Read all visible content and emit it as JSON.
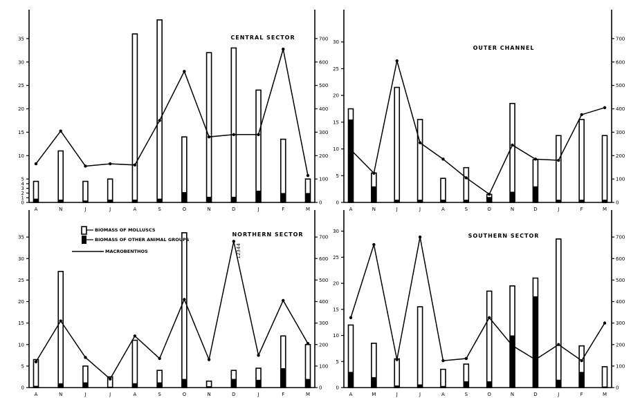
{
  "legend": {
    "molluscs": "BIOMASS OF MOLLUSCS",
    "other": "BIOMASS OF OTHER ANIMAL GROUPS",
    "line": "MACROBENTHOS"
  },
  "chart_data": [
    {
      "type": "bar",
      "title": "CENTRAL SECTOR",
      "categories": [
        "A",
        "N",
        "J",
        "J",
        "A",
        "S",
        "O",
        "N",
        "D",
        "J",
        "F",
        "M"
      ],
      "left_ticks": [
        "0",
        "1",
        "2",
        "3",
        "4",
        "5",
        "10",
        "15",
        "20",
        "25",
        "30",
        "35"
      ],
      "right_ticks": [
        "0",
        "100",
        "200",
        "300",
        "400",
        "500",
        "600",
        "700"
      ],
      "ylim_left": [
        0,
        40
      ],
      "ylim_right": [
        0,
        800
      ],
      "series": [
        {
          "name": "BIOMASS OF MOLLUSCS",
          "values": [
            4.5,
            11,
            4.5,
            5,
            36,
            39,
            14,
            32,
            33,
            24,
            13.5,
            5
          ]
        },
        {
          "name": "BIOMASS OF OTHER ANIMAL GROUPS",
          "values": [
            0.8,
            0.6,
            0.4,
            0.6,
            0.6,
            0.8,
            2.2,
            1.2,
            1.2,
            2.5,
            2,
            2
          ]
        },
        {
          "name": "MACROBENTHOS",
          "values": [
            165,
            305,
            155,
            165,
            160,
            350,
            560,
            280,
            290,
            290,
            655,
            115
          ]
        }
      ]
    },
    {
      "type": "bar",
      "title": "OUTER CHANNEL",
      "categories": [
        "A",
        "N",
        "J",
        "J",
        "A",
        "S",
        "O",
        "N",
        "D",
        "J",
        "F",
        "M"
      ],
      "left_ticks": [
        "0",
        "5",
        "10",
        "15",
        "20",
        "25",
        "30"
      ],
      "right_ticks": [
        "0",
        "100",
        "200",
        "300",
        "400",
        "500",
        "600",
        "700"
      ],
      "ylim_left": [
        0,
        35
      ],
      "ylim_right": [
        0,
        800
      ],
      "series": [
        {
          "name": "BIOMASS OF MOLLUSCS",
          "values": [
            17.5,
            5.5,
            21.5,
            15.5,
            4.5,
            6.5,
            1.5,
            18.5,
            8,
            12.5,
            15.5,
            12.5
          ]
        },
        {
          "name": "BIOMASS OF OTHER ANIMAL GROUPS",
          "values": [
            15.5,
            3,
            0.5,
            0.5,
            0.5,
            0.5,
            1,
            2,
            3,
            0.5,
            0.5,
            0.5
          ]
        },
        {
          "name": "MACROBENTHOS",
          "values": [
            225,
            125,
            605,
            255,
            185,
            105,
            35,
            245,
            185,
            180,
            375,
            405
          ]
        }
      ]
    },
    {
      "type": "bar",
      "title": "NORTHERN SECTOR",
      "categories": [
        "A",
        "N",
        "J",
        "J",
        "A",
        "S",
        "O",
        "N",
        "D",
        "J",
        "F",
        "M"
      ],
      "left_ticks": [
        "0",
        "5",
        "10",
        "15",
        "20",
        "25",
        "30",
        "35"
      ],
      "right_ticks": [
        "0",
        "100",
        "200",
        "300",
        "400",
        "500",
        "600",
        "700"
      ],
      "ylim_left": [
        0,
        40
      ],
      "ylim_right": [
        0,
        800
      ],
      "annotations": [
        "12344"
      ],
      "series": [
        {
          "name": "BIOMASS OF MOLLUSCS",
          "values": [
            6.5,
            27,
            5,
            2.5,
            11,
            4,
            36,
            1.5,
            4,
            4.5,
            12,
            10
          ]
        },
        {
          "name": "BIOMASS OF OTHER ANIMAL GROUPS",
          "values": [
            0.4,
            1,
            1.2,
            0.2,
            1,
            1.2,
            2,
            0.3,
            2,
            1.8,
            4.5,
            2
          ]
        },
        {
          "name": "MACROBENTHOS",
          "values": [
            120,
            310,
            140,
            40,
            240,
            135,
            410,
            130,
            680,
            150,
            405,
            205
          ]
        }
      ]
    },
    {
      "type": "bar",
      "title": "SOUTHERN SECTOR",
      "categories": [
        "A",
        "M",
        "J",
        "J",
        "A",
        "S",
        "O",
        "N",
        "D",
        "J",
        "F",
        "M"
      ],
      "left_ticks": [
        "0",
        "5",
        "10",
        "15",
        "20",
        "25",
        "30"
      ],
      "right_ticks": [
        "0",
        "100",
        "200",
        "300",
        "400",
        "500",
        "600",
        "700"
      ],
      "ylim_left": [
        0,
        33
      ],
      "ylim_right": [
        0,
        800
      ],
      "series": [
        {
          "name": "BIOMASS OF MOLLUSCS",
          "values": [
            12,
            8.5,
            5.5,
            15.5,
            3.5,
            4.5,
            18.5,
            19.5,
            21,
            28.5,
            8,
            4
          ]
        },
        {
          "name": "BIOMASS OF OTHER ANIMAL GROUPS",
          "values": [
            3,
            2,
            0.4,
            0.6,
            0.3,
            1.2,
            1.2,
            10,
            17.5,
            1.5,
            3,
            0.2
          ]
        },
        {
          "name": "MACROBENTHOS",
          "values": [
            325,
            665,
            130,
            700,
            125,
            135,
            325,
            195,
            130,
            200,
            125,
            300
          ]
        }
      ]
    }
  ]
}
